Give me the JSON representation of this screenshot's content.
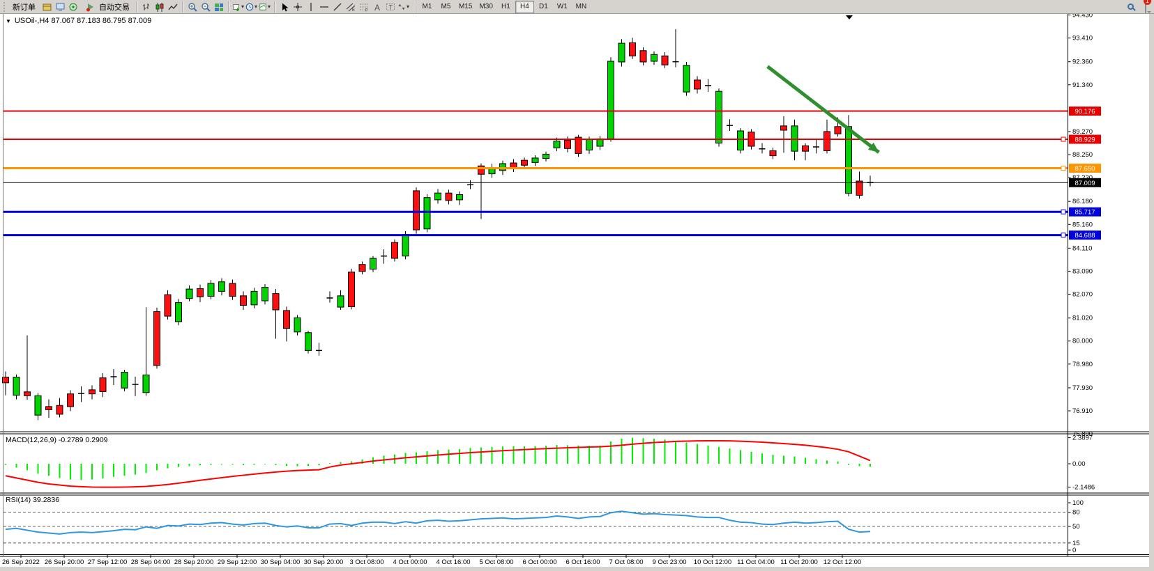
{
  "toolbar": {
    "new_order_label": "新订单",
    "autotrading_label": "自动交易",
    "left_icons": [
      {
        "name": "profiles-icon"
      },
      {
        "name": "data-window-icon"
      },
      {
        "name": "market-watch-icon"
      }
    ],
    "chart_icons": [
      {
        "name": "bar-chart-icon"
      },
      {
        "name": "candlestick-chart-icon"
      },
      {
        "name": "line-chart-icon"
      }
    ],
    "zoom_icons": [
      {
        "name": "zoom-in-icon"
      },
      {
        "name": "zoom-out-icon"
      },
      {
        "name": "tile-windows-icon"
      }
    ],
    "object_icons": [
      {
        "name": "new-chart-icon",
        "dropdown": true
      },
      {
        "name": "period-clock-icon",
        "dropdown": true
      },
      {
        "name": "templates-icon",
        "dropdown": true
      }
    ],
    "draw_icons": [
      {
        "name": "cursor-icon"
      },
      {
        "name": "crosshair-icon"
      },
      {
        "name": "vertical-line-icon"
      },
      {
        "name": "horizontal-line-icon"
      },
      {
        "name": "trendline-icon"
      },
      {
        "name": "equidistant-channel-icon"
      },
      {
        "name": "fibonacci-icon"
      },
      {
        "name": "text-icon"
      },
      {
        "name": "text-label-icon"
      },
      {
        "name": "arrows-icon",
        "dropdown": true
      }
    ],
    "timeframes": [
      "M1",
      "M5",
      "M15",
      "M30",
      "H1",
      "H4",
      "D1",
      "W1",
      "MN"
    ],
    "active_timeframe": "H4",
    "chat_badge_count": "1"
  },
  "chart": {
    "title_text": "USOil-,H4  87.067 87.183 86.795 87.009",
    "symbol": "USOil",
    "period": "H4",
    "open": "87.067",
    "high": "87.183",
    "low": "86.795",
    "close": "87.009"
  },
  "chart_data": {
    "type": "candlestick",
    "title": "USOil H4 with MACD and RSI",
    "price_axis": {
      "ticks": [
        "94.430",
        "93.410",
        "92.360",
        "91.340",
        "89.270",
        "88.250",
        "87.230",
        "86.180",
        "85.160",
        "84.110",
        "83.090",
        "82.070",
        "81.020",
        "80.000",
        "78.980",
        "77.930",
        "76.910",
        "75.890"
      ],
      "min": 75.89,
      "max": 94.43
    },
    "levels": [
      {
        "label": "90.176",
        "price": 90.176,
        "color": "#e60000",
        "width": 2,
        "handle": false
      },
      {
        "label": "88.929",
        "price": 88.929,
        "color": "#e60000",
        "width": 2,
        "handle": true
      },
      {
        "label": "87.650",
        "price": 87.65,
        "color": "#ff9500",
        "width": 3,
        "handle": true
      },
      {
        "label": "85.717",
        "price": 85.717,
        "color": "#0000dd",
        "width": 3,
        "handle": true
      },
      {
        "label": "84.688",
        "price": 84.688,
        "color": "#0000dd",
        "width": 3,
        "handle": true
      }
    ],
    "current_price": {
      "label": "87.009",
      "price": 87.009,
      "color": "#000000"
    },
    "candles": [
      [
        78.4,
        78.15,
        78.65,
        77.6,
        "r"
      ],
      [
        78.4,
        77.6,
        78.52,
        77.42,
        "g"
      ],
      [
        77.75,
        77.58,
        80.25,
        77.4,
        "r"
      ],
      [
        77.58,
        76.72,
        77.7,
        76.5,
        "g"
      ],
      [
        77.1,
        76.96,
        77.42,
        76.6,
        "r"
      ],
      [
        77.15,
        76.76,
        77.48,
        76.62,
        "r"
      ],
      [
        77.66,
        77.1,
        77.82,
        76.9,
        "r"
      ],
      [
        77.72,
        77.64,
        78.0,
        77.3,
        "d"
      ],
      [
        77.84,
        77.66,
        78.04,
        77.42,
        "r"
      ],
      [
        78.37,
        77.76,
        78.58,
        77.52,
        "r"
      ],
      [
        78.46,
        78.38,
        78.76,
        78.05,
        "d"
      ],
      [
        78.62,
        77.92,
        78.72,
        77.78,
        "g"
      ],
      [
        78.12,
        78.04,
        78.42,
        77.56,
        "d"
      ],
      [
        78.5,
        77.72,
        81.5,
        77.58,
        "g"
      ],
      [
        81.3,
        78.92,
        81.48,
        78.78,
        "r"
      ],
      [
        82.05,
        81.1,
        82.25,
        80.95,
        "r"
      ],
      [
        81.7,
        80.86,
        81.86,
        80.7,
        "g"
      ],
      [
        82.3,
        81.88,
        82.46,
        81.76,
        "g"
      ],
      [
        82.32,
        81.96,
        82.5,
        81.72,
        "r"
      ],
      [
        82.55,
        81.98,
        82.7,
        81.85,
        "g"
      ],
      [
        82.62,
        82.2,
        82.78,
        82.02,
        "g"
      ],
      [
        82.55,
        81.98,
        82.72,
        81.82,
        "r"
      ],
      [
        82.0,
        81.58,
        82.2,
        81.38,
        "r"
      ],
      [
        82.2,
        81.6,
        82.35,
        81.45,
        "g"
      ],
      [
        82.38,
        81.78,
        82.52,
        81.62,
        "g"
      ],
      [
        82.1,
        81.38,
        82.3,
        80.1,
        "r"
      ],
      [
        81.35,
        80.56,
        81.52,
        79.98,
        "r"
      ],
      [
        81.03,
        80.4,
        81.15,
        80.25,
        "g"
      ],
      [
        80.37,
        79.58,
        80.46,
        79.45,
        "g"
      ],
      [
        79.62,
        79.54,
        79.92,
        79.35,
        "d"
      ],
      [
        81.95,
        81.86,
        82.2,
        81.7,
        "d"
      ],
      [
        82.0,
        81.5,
        82.25,
        81.38,
        "g"
      ],
      [
        83.05,
        81.52,
        83.2,
        81.4,
        "r"
      ],
      [
        83.39,
        83.08,
        83.52,
        82.95,
        "r"
      ],
      [
        83.66,
        83.18,
        83.76,
        83.05,
        "g"
      ],
      [
        83.8,
        83.72,
        84.06,
        83.42,
        "d"
      ],
      [
        84.36,
        83.66,
        84.5,
        83.52,
        "r"
      ],
      [
        84.72,
        83.76,
        84.86,
        83.62,
        "g"
      ],
      [
        86.65,
        84.92,
        86.8,
        84.75,
        "r"
      ],
      [
        86.35,
        84.96,
        86.5,
        84.82,
        "g"
      ],
      [
        86.55,
        86.25,
        86.72,
        86.08,
        "g"
      ],
      [
        86.55,
        86.22,
        86.7,
        86.05,
        "r"
      ],
      [
        86.48,
        86.25,
        86.62,
        86.02,
        "g"
      ],
      [
        86.95,
        86.88,
        87.12,
        86.72,
        "d"
      ],
      [
        87.75,
        87.38,
        87.86,
        85.4,
        "r"
      ],
      [
        87.68,
        87.4,
        87.85,
        87.22,
        "g"
      ],
      [
        87.85,
        87.55,
        87.98,
        87.35,
        "g"
      ],
      [
        87.88,
        87.62,
        88.05,
        87.48,
        "r"
      ],
      [
        88.0,
        87.78,
        88.12,
        87.6,
        "r"
      ],
      [
        88.1,
        87.9,
        88.22,
        87.75,
        "g"
      ],
      [
        88.27,
        88.08,
        88.38,
        87.95,
        "g"
      ],
      [
        88.85,
        88.55,
        89.0,
        88.4,
        "g"
      ],
      [
        88.88,
        88.52,
        89.05,
        88.35,
        "r"
      ],
      [
        89.02,
        88.3,
        89.12,
        88.15,
        "r"
      ],
      [
        88.92,
        88.45,
        89.05,
        88.28,
        "g"
      ],
      [
        88.95,
        88.62,
        89.08,
        88.45,
        "g"
      ],
      [
        92.38,
        88.95,
        92.56,
        88.82,
        "g"
      ],
      [
        93.18,
        92.35,
        93.36,
        92.15,
        "g"
      ],
      [
        93.2,
        92.62,
        93.42,
        92.48,
        "r"
      ],
      [
        92.85,
        92.35,
        93.0,
        92.2,
        "r"
      ],
      [
        92.68,
        92.38,
        92.82,
        92.22,
        "g"
      ],
      [
        92.62,
        92.22,
        92.78,
        92.08,
        "r"
      ],
      [
        92.42,
        92.3,
        93.8,
        92.12,
        "d"
      ],
      [
        92.2,
        91.02,
        92.35,
        90.85,
        "g"
      ],
      [
        91.55,
        91.15,
        91.72,
        90.95,
        "r"
      ],
      [
        91.35,
        91.26,
        91.6,
        91.02,
        "d"
      ],
      [
        91.05,
        88.76,
        91.18,
        88.6,
        "g"
      ],
      [
        89.58,
        89.5,
        89.82,
        89.3,
        "d"
      ],
      [
        89.3,
        88.45,
        89.42,
        88.3,
        "g"
      ],
      [
        89.25,
        88.62,
        89.38,
        88.48,
        "r"
      ],
      [
        88.55,
        88.46,
        88.76,
        88.3,
        "d"
      ],
      [
        88.42,
        88.2,
        88.56,
        88.05,
        "r"
      ],
      [
        89.52,
        89.33,
        89.95,
        88.33,
        "r"
      ],
      [
        89.52,
        88.4,
        89.8,
        88.0,
        "g"
      ],
      [
        88.64,
        88.4,
        88.75,
        88.0,
        "r"
      ],
      [
        88.62,
        88.56,
        88.9,
        88.3,
        "d"
      ],
      [
        89.27,
        88.42,
        89.8,
        88.3,
        "r"
      ],
      [
        89.49,
        89.17,
        89.9,
        89.05,
        "r"
      ],
      [
        89.49,
        86.54,
        90.0,
        86.4,
        "g"
      ],
      [
        87.08,
        86.45,
        87.5,
        86.3,
        "r"
      ],
      [
        87.06,
        86.98,
        87.32,
        86.85,
        "d"
      ]
    ],
    "candle_colors": {
      "up": "#00d400",
      "down": "#ff1010",
      "doji": "#000000"
    },
    "macd": {
      "title_full": "MACD(12,26,9) -0.2789 0.2909",
      "axis_labels": [
        "2.3897",
        "0.00",
        "-2.1486"
      ],
      "histogram": [
        -0.1,
        -0.35,
        -0.6,
        -0.9,
        -1.1,
        -1.3,
        -1.45,
        -1.5,
        -1.45,
        -1.35,
        -1.2,
        -1.1,
        -1.0,
        -0.85,
        -0.6,
        -0.42,
        -0.3,
        -0.22,
        -0.15,
        -0.1,
        -0.06,
        -0.08,
        -0.12,
        -0.1,
        -0.05,
        -0.12,
        -0.2,
        -0.22,
        -0.2,
        -0.15,
        0.05,
        0.15,
        0.22,
        0.4,
        0.58,
        0.75,
        0.85,
        1.0,
        1.05,
        1.15,
        1.25,
        1.3,
        1.35,
        1.45,
        1.5,
        1.55,
        1.58,
        1.6,
        1.6,
        1.62,
        1.65,
        1.72,
        1.7,
        1.68,
        1.66,
        1.68,
        2.05,
        2.3,
        2.39,
        2.35,
        2.3,
        2.22,
        2.1,
        1.95,
        1.82,
        1.68,
        1.55,
        1.4,
        1.25,
        1.1,
        0.95,
        0.82,
        0.75,
        0.68,
        0.55,
        0.42,
        0.3,
        0.2,
        -0.1,
        -0.22,
        -0.28
      ],
      "signal": [
        -1.1,
        -1.3,
        -1.5,
        -1.7,
        -1.85,
        -1.95,
        -2.05,
        -2.1,
        -2.14,
        -2.15,
        -2.15,
        -2.14,
        -2.12,
        -2.08,
        -2.0,
        -1.9,
        -1.78,
        -1.65,
        -1.52,
        -1.4,
        -1.28,
        -1.16,
        -1.05,
        -0.95,
        -0.85,
        -0.76,
        -0.68,
        -0.62,
        -0.58,
        -0.55,
        -0.3,
        -0.12,
        0.0,
        0.12,
        0.25,
        0.35,
        0.45,
        0.55,
        0.63,
        0.72,
        0.8,
        0.88,
        0.95,
        1.02,
        1.08,
        1.14,
        1.2,
        1.25,
        1.3,
        1.35,
        1.39,
        1.43,
        1.47,
        1.5,
        1.53,
        1.56,
        1.62,
        1.7,
        1.8,
        1.88,
        1.95,
        2.0,
        2.05,
        2.08,
        2.1,
        2.11,
        2.11,
        2.1,
        2.07,
        2.03,
        1.98,
        1.92,
        1.85,
        1.78,
        1.7,
        1.6,
        1.48,
        1.33,
        1.1,
        0.7,
        0.29
      ],
      "colors": {
        "histogram": "#00ee00",
        "signal": "#ff0000"
      }
    },
    "rsi": {
      "title_full": "RSI(14) 39.2836",
      "axis_labels": [
        "100",
        "80",
        "50",
        "15",
        "0"
      ],
      "axis_values": [
        100,
        80,
        50,
        15,
        0
      ],
      "dashed_levels": [
        80,
        50,
        15
      ],
      "values": [
        44,
        46,
        42,
        38,
        36,
        34,
        37,
        38,
        37,
        39,
        41,
        44,
        43,
        49,
        46,
        52,
        51,
        55,
        54,
        57,
        58,
        55,
        53,
        56,
        57,
        52,
        49,
        51,
        47,
        47,
        55,
        56,
        52,
        57,
        59,
        59,
        56,
        60,
        57,
        62,
        63,
        61,
        62,
        64,
        66,
        67,
        68,
        66,
        67,
        68,
        69,
        72,
        70,
        67,
        70,
        71,
        79,
        82,
        79,
        76,
        77,
        75,
        74,
        73,
        70,
        69,
        69,
        63,
        59,
        58,
        55,
        54,
        57,
        59,
        57,
        58,
        60,
        61,
        44,
        38,
        39.28
      ],
      "color": "#2f96e0"
    },
    "time_labels": [
      "26 Sep 2022",
      "26 Sep 20:00",
      "27 Sep 12:00",
      "28 Sep 04:00",
      "28 Sep 20:00",
      "29 Sep 12:00",
      "30 Sep 04:00",
      "30 Sep 20:00",
      "3 Oct 08:00",
      "4 Oct 00:00",
      "4 Oct 16:00",
      "5 Oct 08:00",
      "6 Oct 00:00",
      "6 Oct 16:00",
      "7 Oct 08:00",
      "9 Oct 23:00",
      "10 Oct 12:00",
      "11 Oct 04:00",
      "11 Oct 20:00",
      "12 Oct 12:00"
    ],
    "annotation_arrow": {
      "from_candle": 70.5,
      "from_price": 92.15,
      "to_candle": 80.8,
      "to_price": 88.35,
      "color": "#2f8f2f"
    }
  }
}
